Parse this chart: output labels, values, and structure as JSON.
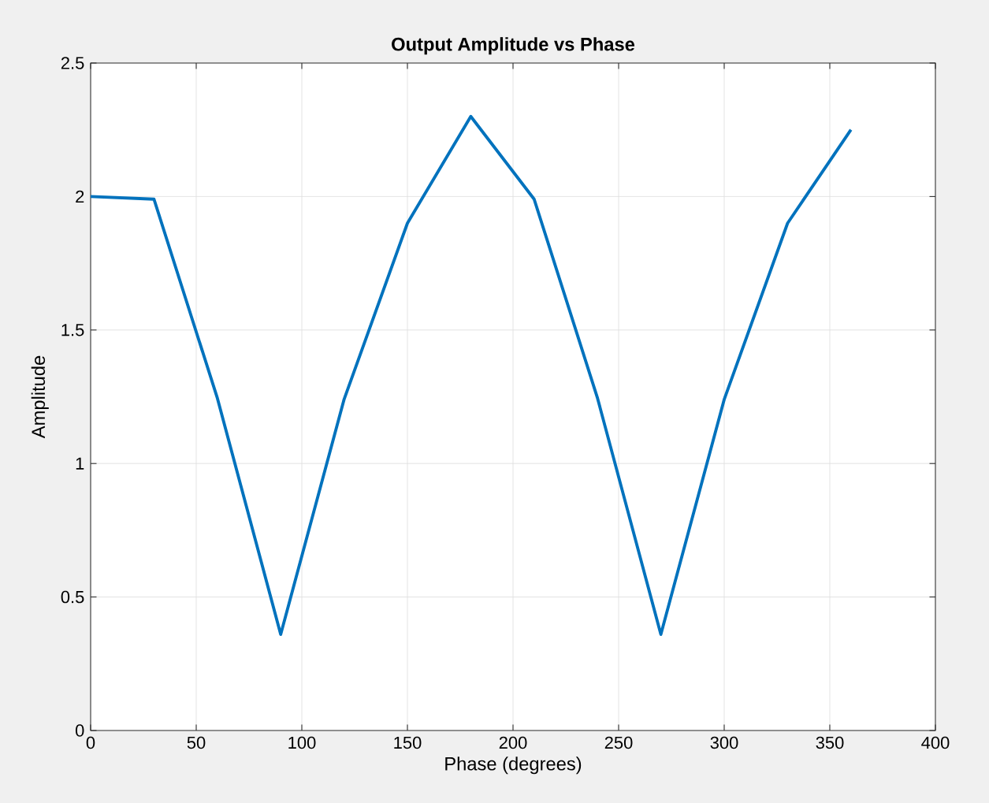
{
  "chart_data": {
    "type": "line",
    "title": "Output Amplitude vs Phase",
    "xlabel": "Phase (degrees)",
    "ylabel": "Amplitude",
    "x": [
      0,
      30,
      60,
      90,
      120,
      150,
      180,
      210,
      240,
      270,
      300,
      330,
      360
    ],
    "series": [
      {
        "color": "#0072bd",
        "values": [
          2.0,
          1.99,
          1.245,
          0.36,
          1.24,
          1.9,
          2.3,
          1.99,
          1.245,
          0.36,
          1.24,
          1.9,
          2.25
        ]
      }
    ],
    "xlim": [
      0,
      400
    ],
    "xticks": [
      0,
      50,
      100,
      150,
      200,
      250,
      300,
      350,
      400
    ],
    "ylim": [
      0,
      2.5
    ],
    "yticks": [
      0,
      0.5,
      1,
      1.5,
      2,
      2.5
    ],
    "grid": true,
    "marker": "none",
    "line_style": "solid"
  }
}
